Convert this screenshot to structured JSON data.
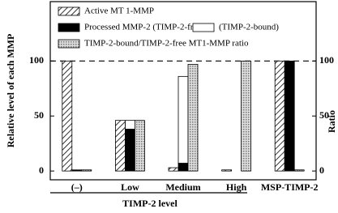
{
  "chart_data": {
    "type": "bar",
    "y_label": "Relative level of each MMP",
    "y2_label": "Ratio",
    "x_label": "TIMP-2 level",
    "categories": [
      "(–)",
      "Low",
      "Medium",
      "High",
      "MSP-TIMP-2"
    ],
    "series": [
      {
        "name": "Active MT 1-MMP",
        "color": "#000000",
        "pattern": "diagonal",
        "values": [
          100,
          46,
          3,
          1,
          100
        ]
      },
      {
        "name": "Processed MMP-2 (TIMP-2-free)",
        "color": "#000000",
        "pattern": "solid",
        "values": [
          1,
          38,
          7,
          0,
          100
        ]
      },
      {
        "name": "(TIMP-2-bound)",
        "color": "#ffffff",
        "pattern": "solid",
        "stack": true,
        "values": [
          0,
          8,
          79,
          0,
          0
        ]
      },
      {
        "name": "TIMP-2-bound/TIMP-2-free MT1-MMP ratio",
        "color": "#999999",
        "pattern": "dots",
        "axis": "y2",
        "values": [
          1,
          46,
          97,
          100,
          1
        ]
      }
    ],
    "ylim": [
      -8,
      154
    ],
    "yticks": [
      0,
      50,
      100
    ],
    "y2lim": [
      -8,
      154
    ],
    "y2ticks": [
      0,
      50,
      100
    ],
    "reference_line": 100
  }
}
